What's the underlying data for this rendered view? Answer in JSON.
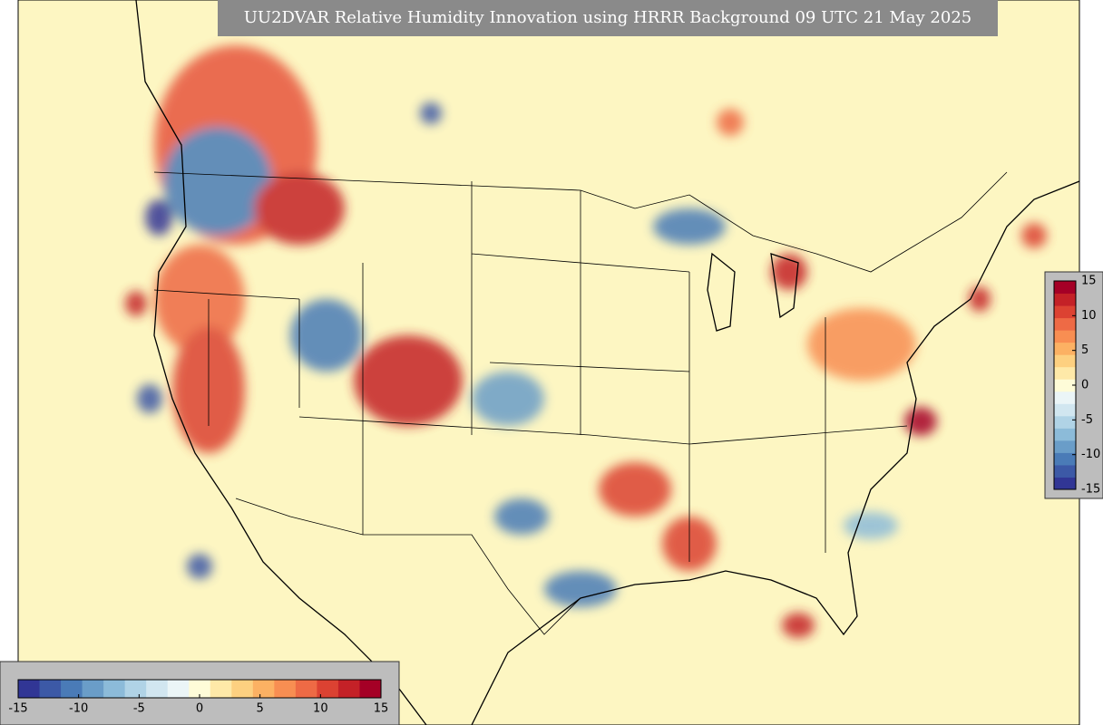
{
  "title": "UU2DVAR Relative Humidity Innovation using HRRR Background 09 UTC 21 May 2025",
  "colormap": [
    "#313695",
    "#3c59a6",
    "#4a7bb7",
    "#6a9dc8",
    "#8cbbd9",
    "#b0d3e6",
    "#d1e6f0",
    "#ebf5f7",
    "#fefcd8",
    "#fee9a8",
    "#fdd080",
    "#fcb163",
    "#f88e52",
    "#ee6a45",
    "#dc4232",
    "#c42127",
    "#a50026"
  ],
  "colorbars": [
    {
      "orientation": "horizontal",
      "lim": [
        -15,
        15
      ],
      "ticks": [
        -15,
        -10,
        -5,
        0,
        5,
        10,
        15
      ]
    },
    {
      "orientation": "vertical",
      "lim": [
        -15,
        15
      ],
      "ticks": [
        -15,
        -10,
        -5,
        0,
        5,
        10,
        15
      ]
    }
  ]
}
